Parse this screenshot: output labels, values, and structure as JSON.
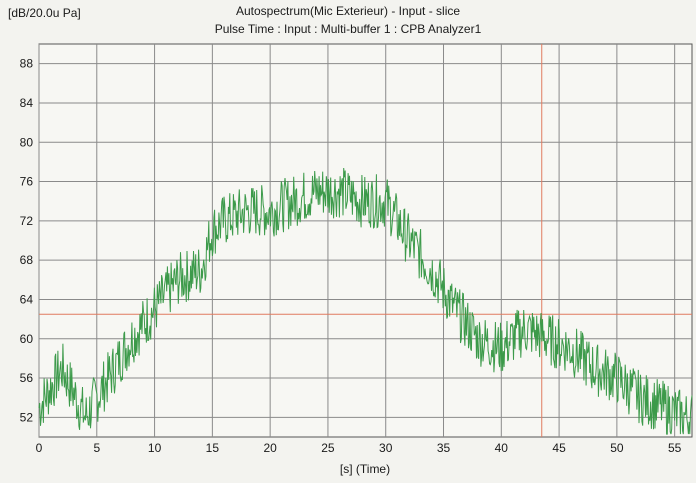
{
  "chart_data": {
    "type": "line",
    "title": "Autospectrum(Mic Exterieur) - Input - slice",
    "subtitle": "Pulse Time : Input : Multi-buffer 1 : CPB Analyzer1",
    "ylabel": "[dB/20.0u Pa]",
    "xlabel": "[s] (Time)",
    "xlim": [
      0,
      56.5
    ],
    "ylim": [
      50,
      90
    ],
    "x_ticks": [
      0,
      5,
      10,
      15,
      20,
      25,
      30,
      35,
      40,
      45,
      50,
      55
    ],
    "y_ticks": [
      52,
      56,
      60,
      64,
      68,
      72,
      76,
      80,
      84,
      88
    ],
    "grid": true,
    "cursor": {
      "x": 43.5,
      "y": 62.5
    },
    "colors": {
      "series": "#3c9a4a",
      "cursor": "#e07a5f",
      "grid": "#8a8a8a",
      "plot_bg": "#f7f7f3"
    },
    "series": [
      {
        "x": [
          0,
          2,
          4,
          5,
          6,
          8,
          10,
          12,
          14,
          15,
          16,
          18,
          20,
          22,
          24,
          26,
          28,
          30,
          32,
          34,
          36,
          38,
          40,
          42,
          44,
          46,
          48,
          50,
          52,
          54,
          56
        ],
        "values": [
          53,
          57,
          52,
          54,
          56,
          60,
          63,
          66,
          67,
          71,
          72,
          73,
          73,
          74,
          75,
          75,
          74,
          74,
          70,
          67,
          63,
          60,
          59,
          61,
          60,
          59,
          57,
          56,
          54,
          53,
          52
        ]
      }
    ]
  }
}
